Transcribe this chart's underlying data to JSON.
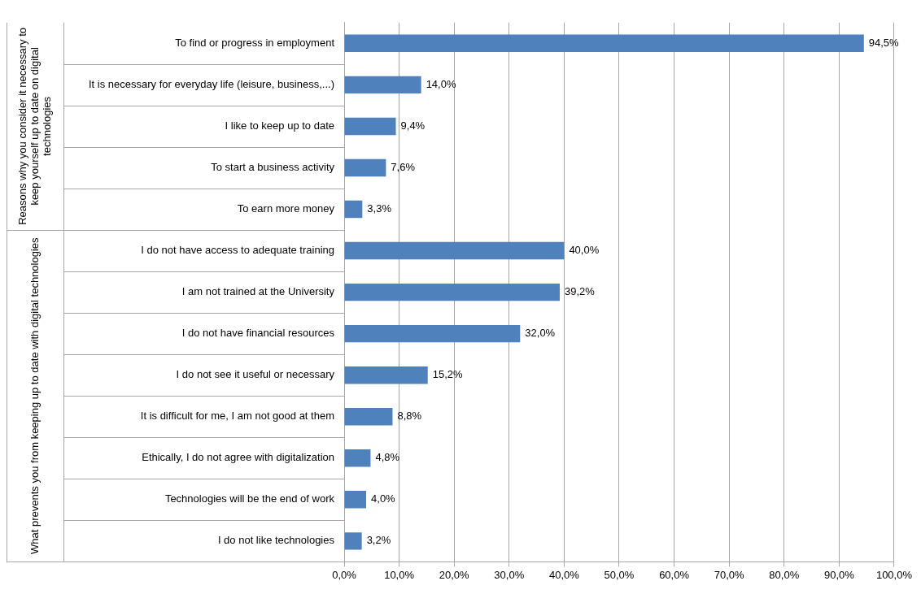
{
  "chart_data": {
    "type": "bar",
    "orientation": "horizontal",
    "categories": [
      "To find or progress in employment",
      "It is necessary for everyday life (leisure, business,...)",
      "I like to keep up to date",
      "To start a business activity",
      "To earn more money",
      "I do not have access to adequate training",
      "I am not trained at the University",
      "I do not have financial resources",
      "I do not see it useful or necessary",
      "It is difficult for me, I am not good at them",
      "Ethically, I do not agree with digitalization",
      "Technologies will be the end of work",
      "I do not like technologies"
    ],
    "values": [
      94.5,
      14.0,
      9.4,
      7.6,
      3.3,
      40.0,
      39.2,
      32.0,
      15.2,
      8.8,
      4.8,
      4.0,
      3.2
    ],
    "value_labels": [
      "94,5%",
      "14,0%",
      "9,4%",
      "7,6%",
      "3,3%",
      "40,0%",
      "39,2%",
      "32,0%",
      "15,2%",
      "8,8%",
      "4,8%",
      "4,0%",
      "3,2%"
    ],
    "color": "#4f81bd",
    "xlim": [
      0,
      100
    ],
    "xticks": [
      {
        "value": 0,
        "label": "0,0%"
      },
      {
        "value": 10,
        "label": "10,0%"
      },
      {
        "value": 20,
        "label": "20,0%"
      },
      {
        "value": 30,
        "label": "30,0%"
      },
      {
        "value": 40,
        "label": "40,0%"
      },
      {
        "value": 50,
        "label": "50,0%"
      },
      {
        "value": 60,
        "label": "60,0%"
      },
      {
        "value": 70,
        "label": "70,0%"
      },
      {
        "value": 80,
        "label": "80,0%"
      },
      {
        "value": 90,
        "label": "90,0%"
      },
      {
        "value": 100,
        "label": "100,0%"
      }
    ],
    "grid": "x",
    "legend": false,
    "annotations": [
      "Reasons why you consider it necessary to keep yourself up to date on digital technologies",
      "What prevents you from keeping up to date with digital technologies"
    ]
  }
}
